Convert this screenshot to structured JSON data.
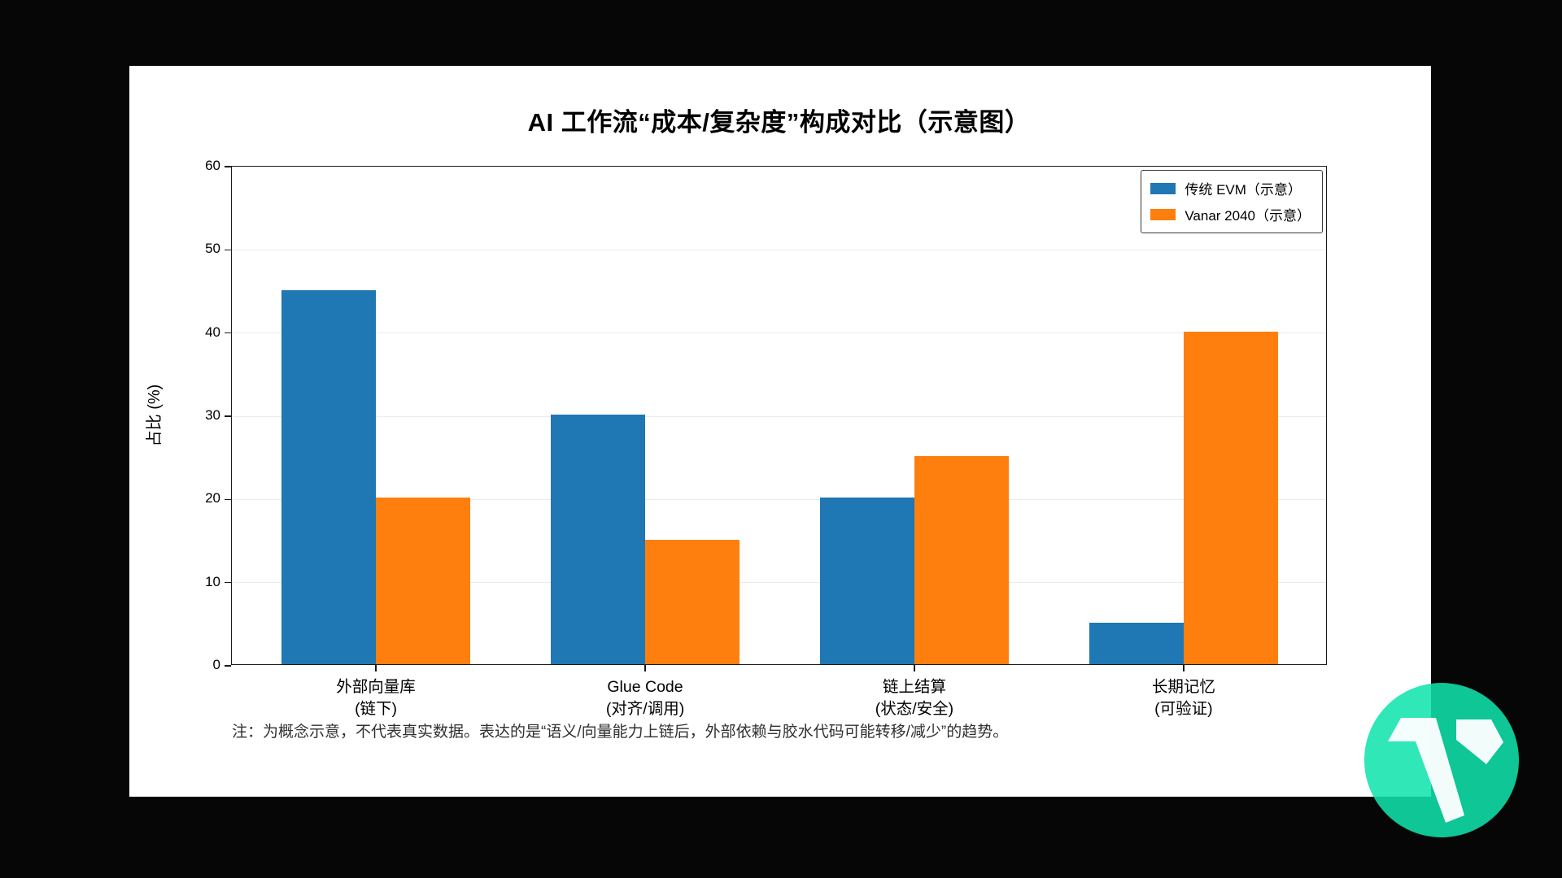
{
  "chart_data": {
    "type": "bar",
    "title": "AI 工作流“成本/复杂度”构成对比（示意图）",
    "ylabel": "占比 (%)",
    "xlabel": "",
    "ylim": [
      0,
      60
    ],
    "yticks": [
      0,
      10,
      20,
      30,
      40,
      50,
      60
    ],
    "grid": "horizontal",
    "legend_position": "top-right",
    "categories": [
      {
        "line1": "外部向量库",
        "line2": "(链下)"
      },
      {
        "line1": "Glue Code",
        "line2": "(对齐/调用)"
      },
      {
        "line1": "链上结算",
        "line2": "(状态/安全)"
      },
      {
        "line1": "长期记忆",
        "line2": "(可验证)"
      }
    ],
    "series": [
      {
        "name": "传统 EVM（示意）",
        "color": "#1f77b4",
        "values": [
          45,
          30,
          20,
          5
        ]
      },
      {
        "name": "Vanar 2040（示意）",
        "color": "#ff7f0e",
        "values": [
          20,
          15,
          25,
          40
        ]
      }
    ],
    "bar_width_units": 0.35,
    "x_range_units": [
      -0.535,
      3.535
    ]
  },
  "note": "注：为概念示意，不代表真实数据。表达的是“语义/向量能力上链后，外部依赖与胶水代码可能转移/减少”的趋势。",
  "logo": {
    "name": "vanar-logo",
    "circle_color": "rgba(16, 228, 172, 0.87)",
    "mark_color": "rgba(255, 255, 255, 0.95)"
  },
  "colors": {
    "page_background": "#060606",
    "card_background": "#ffffff",
    "axis": "#1a1a1a",
    "gridline": "#ebebeb"
  }
}
